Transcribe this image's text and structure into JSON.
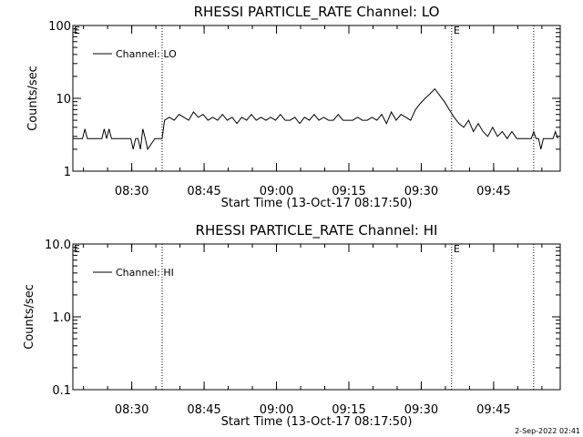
{
  "footer": {
    "timestamp": "2-Sep-2022 02:41"
  },
  "chart_data": [
    {
      "type": "line",
      "title": "RHESSI PARTICLE_RATE Channel: LO",
      "xlabel": "Start Time (13-Oct-17 08:17:50)",
      "ylabel": "Counts/sec",
      "yscale": "log",
      "ylim": [
        1,
        100
      ],
      "yticks": [
        1,
        10,
        100
      ],
      "ytick_labels": [
        "1",
        "10",
        "100"
      ],
      "xlim_minutes": [
        0,
        101
      ],
      "xticks_minutes": [
        12.2,
        27.2,
        42.2,
        57.2,
        72.2,
        87.2
      ],
      "xtick_labels": [
        "08:30",
        "08:45",
        "09:00",
        "09:15",
        "09:30",
        "09:45"
      ],
      "vertical_markers_minutes": [
        18.5,
        78.5,
        95.5
      ],
      "marker_labels": [
        {
          "text": "E",
          "at_minutes": 0
        },
        {
          "text": "E",
          "at_minutes": 78.5
        }
      ],
      "legend": {
        "position": "top-left",
        "entries": [
          "Channel: LO"
        ]
      },
      "grid": false,
      "series": [
        {
          "name": "Channel: LO",
          "color": "#000000",
          "x_minutes": [
            0,
            2,
            2.5,
            3,
            3.5,
            6,
            6.5,
            7,
            7.5,
            8,
            8.5,
            12,
            12.5,
            13,
            13.5,
            14,
            14.5,
            15,
            15.5,
            17,
            17.5,
            18,
            18.5,
            19,
            20,
            21,
            22,
            23,
            24,
            25,
            26,
            27,
            28,
            29,
            30,
            31,
            32,
            33,
            34,
            35,
            36,
            37,
            38,
            39,
            40,
            41,
            42,
            43,
            44,
            45,
            46,
            47,
            48,
            49,
            50,
            51,
            52,
            53,
            54,
            55,
            56,
            57,
            58,
            59,
            60,
            61,
            62,
            63,
            64,
            65,
            66,
            67,
            68,
            69,
            70,
            71,
            72,
            73,
            74,
            75,
            76,
            77,
            78,
            79,
            80,
            81,
            82,
            83,
            84,
            85,
            86,
            87,
            88,
            89,
            90,
            91,
            92,
            93,
            94,
            95,
            95.5,
            96,
            96.5,
            97,
            97.5,
            98,
            98.5,
            99,
            99.5,
            100,
            100.5
          ],
          "values": [
            2.8,
            2.8,
            3.8,
            2.8,
            2.8,
            2.8,
            3.8,
            2.8,
            3.8,
            2.8,
            2.8,
            2.8,
            2.0,
            2.8,
            2.8,
            2.0,
            3.8,
            2.8,
            2.0,
            2.8,
            2.8,
            2.8,
            2.8,
            5.0,
            5.5,
            5.0,
            6.0,
            5.5,
            5.0,
            6.5,
            5.5,
            6.0,
            5.0,
            5.5,
            5.0,
            6.0,
            5.0,
            5.5,
            4.5,
            5.5,
            5.0,
            6.0,
            5.0,
            5.5,
            5.0,
            5.5,
            5.0,
            6.0,
            5.0,
            5.0,
            5.5,
            4.5,
            5.5,
            5.0,
            6.0,
            5.0,
            5.5,
            5.0,
            5.0,
            6.0,
            5.0,
            5.0,
            5.0,
            5.5,
            5.0,
            5.0,
            5.5,
            5.0,
            6.0,
            4.5,
            6.5,
            5.0,
            6.0,
            5.5,
            5.0,
            7.0,
            8.5,
            10.0,
            11.5,
            13.5,
            11.0,
            9.0,
            7.0,
            5.5,
            4.5,
            4.0,
            5.0,
            3.5,
            4.5,
            3.5,
            3.0,
            4.0,
            3.0,
            3.5,
            2.8,
            3.5,
            2.8,
            2.8,
            2.8,
            2.8,
            3.5,
            2.8,
            2.8,
            2.0,
            2.8,
            2.8,
            2.8,
            2.8,
            2.8,
            3.5,
            2.8
          ]
        }
      ]
    },
    {
      "type": "line",
      "title": "RHESSI PARTICLE_RATE Channel: HI",
      "xlabel": "Start Time (13-Oct-17 08:17:50)",
      "ylabel": "Counts/sec",
      "yscale": "log",
      "ylim": [
        0.1,
        10
      ],
      "yticks": [
        0.1,
        1,
        10
      ],
      "ytick_labels": [
        "0.1",
        "1.0",
        "10.0"
      ],
      "xlim_minutes": [
        0,
        101
      ],
      "xticks_minutes": [
        12.2,
        27.2,
        42.2,
        57.2,
        72.2,
        87.2
      ],
      "xtick_labels": [
        "08:30",
        "08:45",
        "09:00",
        "09:15",
        "09:30",
        "09:45"
      ],
      "vertical_markers_minutes": [
        18.5,
        78.5,
        95.5
      ],
      "marker_labels": [
        {
          "text": "E",
          "at_minutes": 0
        },
        {
          "text": "E",
          "at_minutes": 78.5
        }
      ],
      "legend": {
        "position": "top-left",
        "entries": [
          "Channel: HI"
        ]
      },
      "grid": false,
      "series": [
        {
          "name": "Channel: HI",
          "color": "#000000",
          "x_minutes": [],
          "values": []
        }
      ]
    }
  ]
}
